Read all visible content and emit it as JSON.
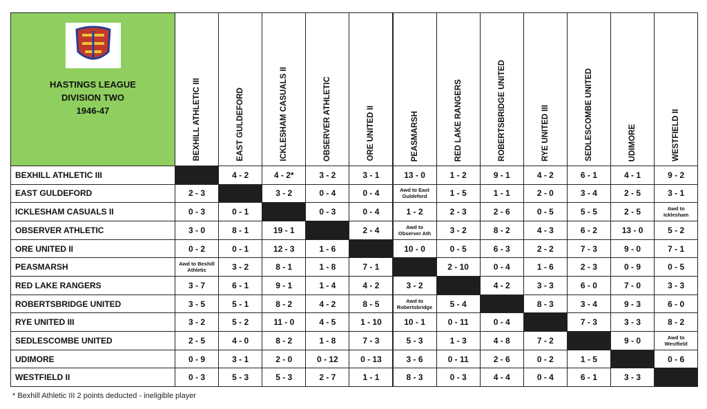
{
  "header": {
    "title_lines": [
      "HASTINGS LEAGUE",
      "DIVISION TWO",
      "1946-47"
    ]
  },
  "teams": [
    "BEXHILL ATHLETIC III",
    "EAST GULDEFORD",
    "ICKLESHAM CASUALS II",
    "OBSERVER ATHLETIC",
    "ORE UNITED II",
    "PEASMARSH",
    "RED LAKE RANGERS",
    "ROBERTSBRIDGE UNITED",
    "RYE UNITED III",
    "SEDLESCOMBE UNITED",
    "UDIMORE",
    "WESTFIELD II"
  ],
  "results": [
    [
      null,
      "4 - 2",
      "4 - 2*",
      "3 - 2",
      "3 - 1",
      "13 - 0",
      "1 - 2",
      "9 - 1",
      "4 - 2",
      "6 - 1",
      "4 - 1",
      "9 - 2"
    ],
    [
      "2 - 3",
      null,
      "3 - 2",
      "0 - 4",
      "0 - 4",
      "Awd to East Guldeford",
      "1 - 5",
      "1 - 1",
      "2 - 0",
      "3 - 4",
      "2 - 5",
      "3 - 1"
    ],
    [
      "0 - 3",
      "0 - 1",
      null,
      "0 - 3",
      "0 - 4",
      "1 - 2",
      "2 - 3",
      "2 - 6",
      "0 - 5",
      "5 - 5",
      "2 - 5",
      "Awd to Icklesham"
    ],
    [
      "3 - 0",
      "8 - 1",
      "19 - 1",
      null,
      "2 - 4",
      "Awd to Observer Ath",
      "3 - 2",
      "8 - 2",
      "4 - 3",
      "6 - 2",
      "13 - 0",
      "5 - 2"
    ],
    [
      "0 - 2",
      "0 - 1",
      "12 - 3",
      "1 - 6",
      null,
      "10 - 0",
      "0 - 5",
      "6 - 3",
      "2 - 2",
      "7 - 3",
      "9 - 0",
      "7 - 1"
    ],
    [
      "Awd to Bexhill Athletic",
      "3 - 2",
      "8 - 1",
      "1 - 8",
      "7 - 1",
      null,
      "2 - 10",
      "0 - 4",
      "1 - 6",
      "2 - 3",
      "0 - 9",
      "0 - 5"
    ],
    [
      "3 - 7",
      "6 - 1",
      "9 - 1",
      "1 - 4",
      "4 - 2",
      "3 - 2",
      null,
      "4 - 2",
      "3 - 3",
      "6 - 0",
      "7 - 0",
      "3 - 3"
    ],
    [
      "3 - 5",
      "5 - 1",
      "8 - 2",
      "4 - 2",
      "8 - 5",
      "Awd to Robertsbridge",
      "5 - 4",
      null,
      "8 - 3",
      "3 - 4",
      "9 - 3",
      "6 - 0"
    ],
    [
      "3 - 2",
      "5 - 2",
      "11 - 0",
      "4 - 5",
      "1 - 10",
      "10 - 1",
      "0 - 11",
      "0 - 4",
      null,
      "7 - 3",
      "3 - 3",
      "8 - 2"
    ],
    [
      "2 - 5",
      "4 - 0",
      "8 - 2",
      "1 - 8",
      "7 - 3",
      "5 - 3",
      "1 - 3",
      "4 - 8",
      "7 - 2",
      null,
      "9 - 0",
      "Awd to Westfield"
    ],
    [
      "0 - 9",
      "3 - 1",
      "2 - 0",
      "0 - 12",
      "0 - 13",
      "3 - 6",
      "0 - 11",
      "2 - 6",
      "0 - 2",
      "1 - 5",
      null,
      "0 - 6"
    ],
    [
      "0 - 3",
      "5 - 3",
      "5 - 3",
      "2 - 7",
      "1 - 1",
      "8 - 3",
      "0 - 3",
      "4 - 4",
      "0 - 4",
      "6 - 1",
      "3 - 3",
      null
    ]
  ],
  "footnote": "* Bexhill Athletic III 2 points deducted - ineligible player"
}
